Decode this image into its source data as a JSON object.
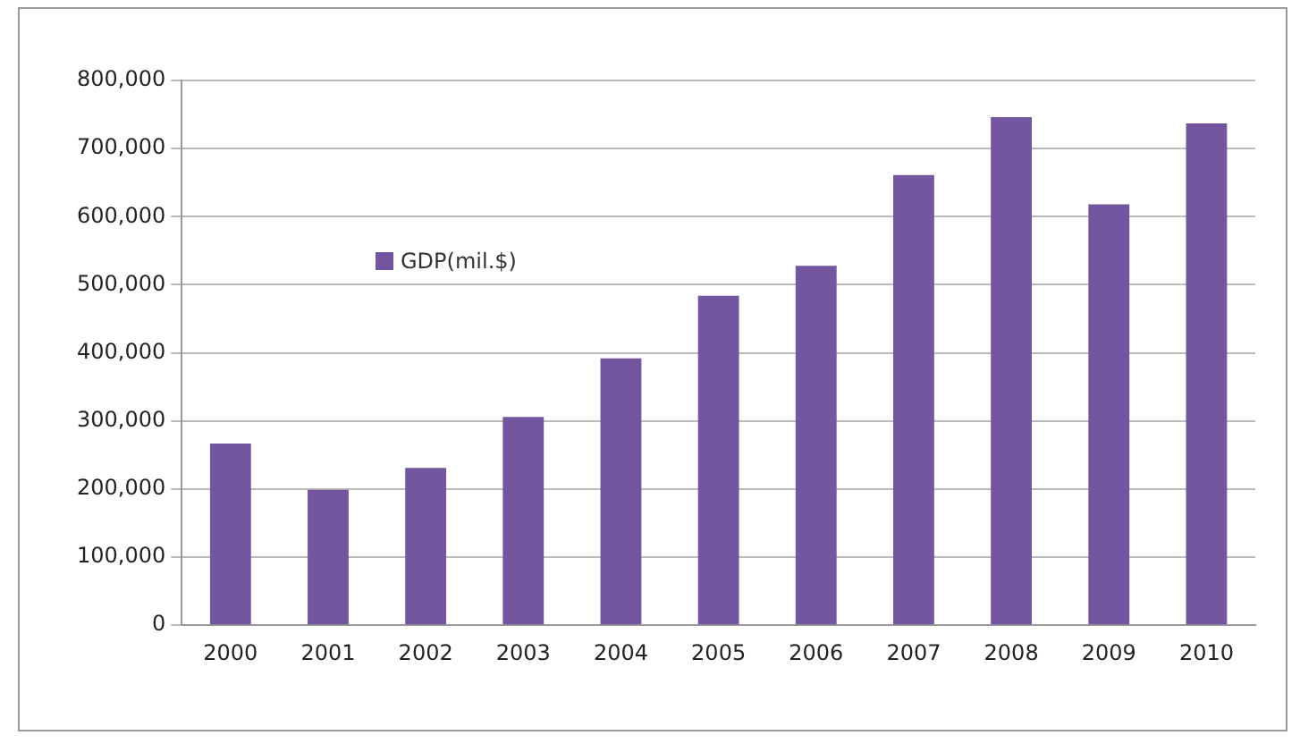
{
  "chart_data": {
    "type": "bar",
    "categories": [
      "2000",
      "2001",
      "2002",
      "2003",
      "2004",
      "2005",
      "2006",
      "2007",
      "2008",
      "2009",
      "2010"
    ],
    "series": [
      {
        "name": "GDP(mil.$)",
        "color": "#7455a0",
        "values": [
          267000,
          199000,
          231000,
          306000,
          392000,
          484000,
          528000,
          661000,
          746000,
          618000,
          737000
        ]
      }
    ],
    "ylim": [
      0,
      800000
    ],
    "yticks": [
      0,
      {
        "value": 100000,
        "label": "100,000"
      },
      {
        "value": 200000,
        "label": "200,000"
      },
      {
        "value": 300000,
        "label": "300,000"
      },
      {
        "value": 400000,
        "label": "400,000"
      },
      {
        "value": 500000,
        "label": "500,000"
      },
      {
        "value": 600000,
        "label": "600,000"
      },
      {
        "value": 700000,
        "label": "700,000"
      },
      {
        "value": 800000,
        "label": "800,000"
      }
    ],
    "grid": "y",
    "legend": "top left"
  }
}
